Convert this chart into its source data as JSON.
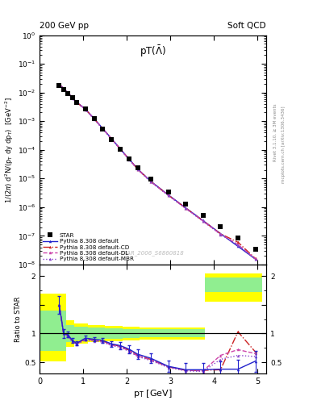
{
  "title_left": "200 GeV pp",
  "title_right": "Soft QCD",
  "panel_title": "pT($\\bar{\\Lambda}$)",
  "watermark": "STAR_2006_S6860818",
  "right_label": "Rivet 3.1.10, ≥ 3M events",
  "right_label2": "mcplots.cern.ch [arXiv:1306.3436]",
  "star_x": [
    0.45,
    0.55,
    0.65,
    0.75,
    0.85,
    1.05,
    1.25,
    1.45,
    1.65,
    1.85,
    2.05,
    2.25,
    2.55,
    2.95,
    3.35,
    3.75,
    4.15,
    4.55,
    4.95
  ],
  "star_y": [
    0.018,
    0.013,
    0.0092,
    0.0065,
    0.0044,
    0.0026,
    0.0012,
    0.00052,
    0.00023,
    0.000105,
    4.9e-05,
    2.4e-05,
    9.5e-06,
    3.4e-06,
    1.3e-06,
    5.2e-07,
    2.1e-07,
    8.5e-08,
    3.5e-08
  ],
  "star_yerr": [
    0.002,
    0.0015,
    0.001,
    0.0008,
    0.0005,
    0.0003,
    0.00013,
    5.5e-05,
    2.5e-05,
    1.1e-05,
    5.2e-06,
    2.6e-06,
    1e-06,
    3.7e-07,
    1.4e-07,
    5.7e-08,
    2.3e-08,
    9.3e-09,
    3.8e-09
  ],
  "py_def_x": [
    0.45,
    0.55,
    0.65,
    0.75,
    0.85,
    1.05,
    1.25,
    1.45,
    1.65,
    1.85,
    2.05,
    2.25,
    2.55,
    2.95,
    3.35,
    3.75,
    4.15,
    4.55,
    4.95
  ],
  "py_def_y": [
    0.0195,
    0.0138,
    0.0097,
    0.0067,
    0.0046,
    0.00264,
    0.00122,
    0.00055,
    0.000245,
    0.000108,
    4.8e-05,
    2.15e-05,
    8e-06,
    2.7e-06,
    9.5e-07,
    3.4e-07,
    1.2e-07,
    4.3e-08,
    1.55e-08
  ],
  "py_cd_x": [
    0.45,
    0.55,
    0.65,
    0.75,
    0.85,
    1.05,
    1.25,
    1.45,
    1.65,
    1.85,
    2.05,
    2.25,
    2.55,
    2.95,
    3.35,
    3.75,
    4.15,
    4.55,
    4.95
  ],
  "py_cd_y": [
    0.0193,
    0.0136,
    0.0095,
    0.0066,
    0.0045,
    0.00261,
    0.00121,
    0.000545,
    0.000242,
    0.000107,
    4.75e-05,
    2.12e-05,
    7.9e-06,
    2.65e-06,
    9.3e-07,
    3.35e-07,
    1.18e-07,
    6e-08,
    1.62e-08
  ],
  "py_dl_x": [
    0.45,
    0.55,
    0.65,
    0.75,
    0.85,
    1.05,
    1.25,
    1.45,
    1.65,
    1.85,
    2.05,
    2.25,
    2.55,
    2.95,
    3.35,
    3.75,
    4.15,
    4.55,
    4.95
  ],
  "py_dl_y": [
    0.0191,
    0.0134,
    0.0094,
    0.0065,
    0.00445,
    0.00258,
    0.00119,
    0.000538,
    0.000239,
    0.0001055,
    4.68e-05,
    2.09e-05,
    7.78e-06,
    2.6e-06,
    9.15e-07,
    3.28e-07,
    1.15e-07,
    4.95e-08,
    1.57e-08
  ],
  "py_mbr_x": [
    0.45,
    0.55,
    0.65,
    0.75,
    0.85,
    1.05,
    1.25,
    1.45,
    1.65,
    1.85,
    2.05,
    2.25,
    2.55,
    2.95,
    3.35,
    3.75,
    4.15,
    4.55,
    4.95
  ],
  "py_mbr_y": [
    0.0188,
    0.0132,
    0.0092,
    0.0064,
    0.00438,
    0.00254,
    0.00117,
    0.00053,
    0.000235,
    0.000104,
    4.6e-05,
    2.06e-05,
    7.65e-06,
    2.56e-06,
    9e-07,
    3.22e-07,
    1.12e-07,
    4.78e-08,
    1.52e-08
  ],
  "ratio_def_x": [
    0.45,
    0.55,
    0.65,
    0.75,
    0.85,
    1.05,
    1.25,
    1.45,
    1.65,
    1.85,
    2.05,
    2.25,
    2.55,
    2.95,
    3.35,
    3.75,
    4.15,
    4.55,
    4.95
  ],
  "ratio_def_y": [
    1.5,
    1.0,
    0.98,
    0.88,
    0.83,
    0.92,
    0.9,
    0.88,
    0.82,
    0.79,
    0.73,
    0.64,
    0.57,
    0.43,
    0.37,
    0.37,
    0.38,
    0.38,
    0.52
  ],
  "ratio_def_yerr": [
    0.15,
    0.08,
    0.05,
    0.04,
    0.04,
    0.04,
    0.04,
    0.04,
    0.05,
    0.06,
    0.07,
    0.08,
    0.08,
    0.1,
    0.12,
    0.12,
    0.14,
    0.16,
    0.18
  ],
  "ratio_cd_x": [
    0.45,
    0.55,
    0.65,
    0.75,
    0.85,
    1.05,
    1.25,
    1.45,
    1.65,
    1.85,
    2.05,
    2.25,
    2.55,
    2.95,
    3.35,
    3.75,
    4.15,
    4.55,
    4.95
  ],
  "ratio_cd_y": [
    1.5,
    1.0,
    0.97,
    0.87,
    0.82,
    0.91,
    0.89,
    0.87,
    0.81,
    0.78,
    0.71,
    0.62,
    0.55,
    0.42,
    0.36,
    0.36,
    0.37,
    1.03,
    0.68
  ],
  "ratio_dl_x": [
    0.45,
    0.55,
    0.65,
    0.75,
    0.85,
    1.05,
    1.25,
    1.45,
    1.65,
    1.85,
    2.05,
    2.25,
    2.55,
    2.95,
    3.35,
    3.75,
    4.15,
    4.55,
    4.95
  ],
  "ratio_dl_y": [
    1.5,
    1.0,
    0.96,
    0.86,
    0.82,
    0.9,
    0.88,
    0.86,
    0.8,
    0.77,
    0.7,
    0.61,
    0.54,
    0.42,
    0.36,
    0.35,
    0.62,
    0.72,
    0.65
  ],
  "ratio_mbr_x": [
    0.45,
    0.55,
    0.65,
    0.75,
    0.85,
    1.05,
    1.25,
    1.45,
    1.65,
    1.85,
    2.05,
    2.25,
    2.55,
    2.95,
    3.35,
    3.75,
    4.15,
    4.55,
    4.95
  ],
  "ratio_mbr_y": [
    1.5,
    1.0,
    0.95,
    0.86,
    0.81,
    0.89,
    0.87,
    0.85,
    0.79,
    0.76,
    0.69,
    0.6,
    0.53,
    0.41,
    0.35,
    0.34,
    0.55,
    0.62,
    0.6
  ],
  "band_x_edges": [
    0.0,
    0.6,
    0.8,
    1.1,
    1.5,
    1.9,
    2.3,
    2.8,
    3.3,
    3.8,
    4.3,
    5.1
  ],
  "yellow_lo": [
    0.52,
    0.77,
    0.82,
    0.85,
    0.87,
    0.88,
    0.89,
    0.9,
    0.9,
    1.55,
    1.55,
    1.55
  ],
  "yellow_hi": [
    1.7,
    1.23,
    1.18,
    1.15,
    1.13,
    1.12,
    1.11,
    1.1,
    1.1,
    2.05,
    2.05,
    2.05
  ],
  "green_lo": [
    0.7,
    0.85,
    0.88,
    0.9,
    0.91,
    0.92,
    0.93,
    0.93,
    0.93,
    1.72,
    1.72,
    1.72
  ],
  "green_hi": [
    1.4,
    1.15,
    1.12,
    1.1,
    1.09,
    1.08,
    1.07,
    1.07,
    1.07,
    1.98,
    1.98,
    1.98
  ],
  "color_def": "#2222cc",
  "color_cd": "#cc2222",
  "color_dl": "#cc44aa",
  "color_mbr": "#8844cc",
  "color_star": "#000000",
  "xlim": [
    0.0,
    5.2
  ],
  "ylim_main": [
    1e-08,
    1.0
  ],
  "ylim_ratio": [
    0.3,
    2.2
  ],
  "yticks_main": [
    1e-08,
    1e-07,
    1e-06,
    1e-05,
    0.0001,
    0.001,
    0.01,
    0.1,
    1.0
  ],
  "xticks": [
    0,
    1,
    2,
    3,
    4,
    5
  ]
}
